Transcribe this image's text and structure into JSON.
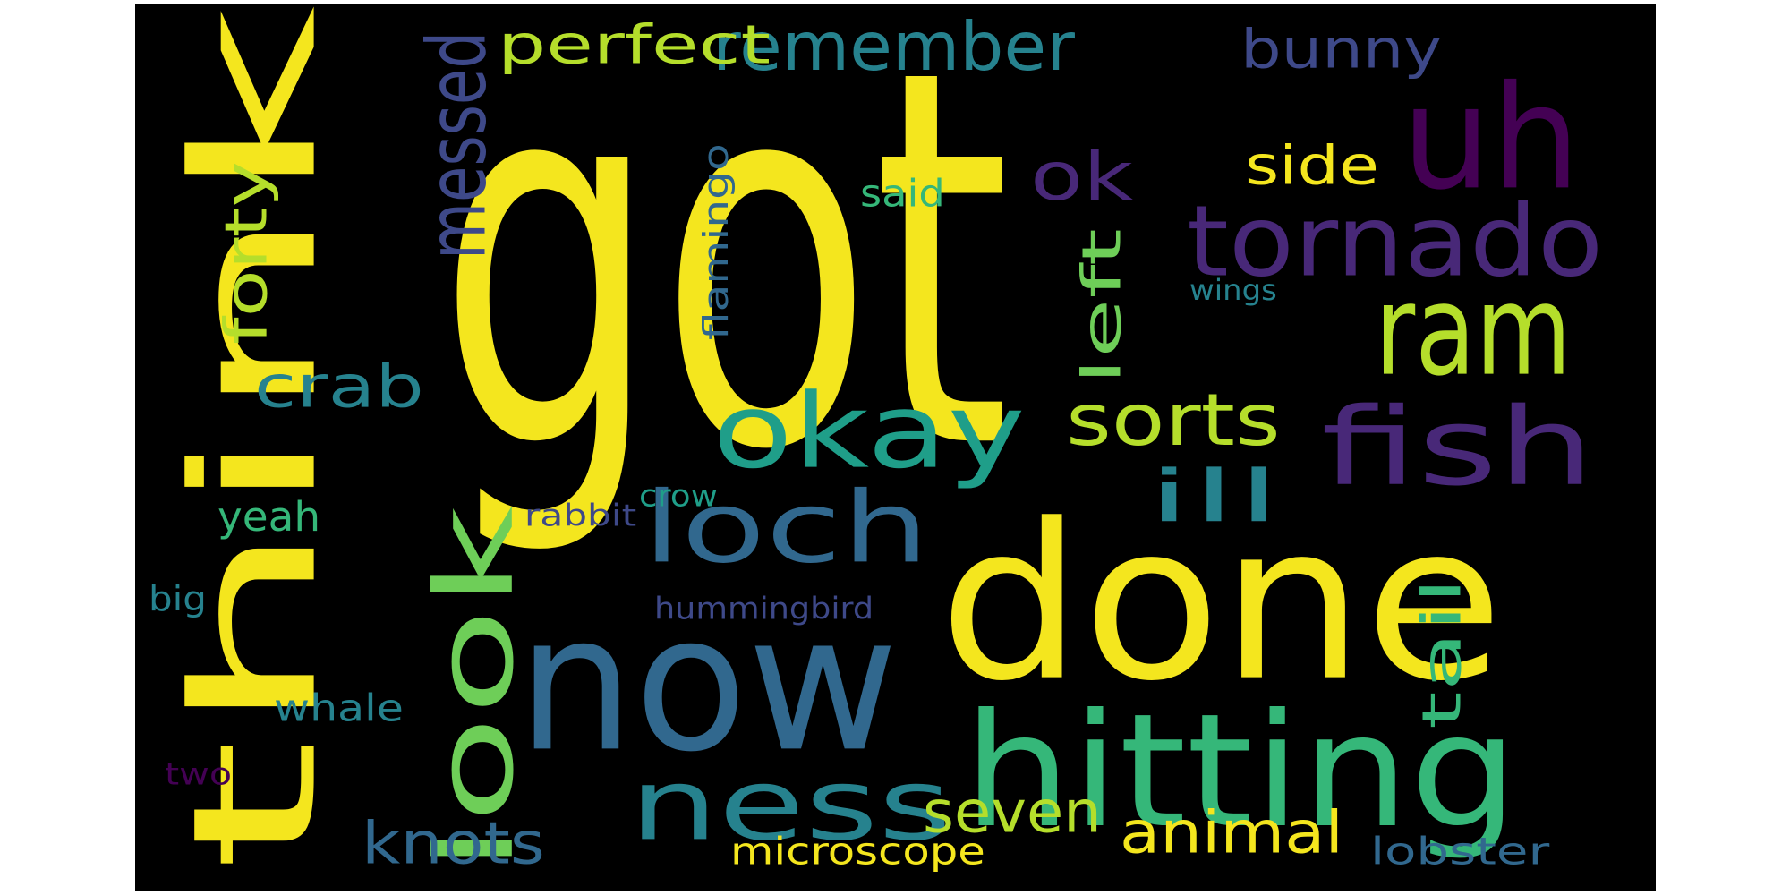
{
  "palette": {
    "yellow": "#f4e61e",
    "lime": "#b5de2b",
    "green": "#6ece58",
    "teal_green": "#35b779",
    "teal": "#1f9e89",
    "cyan_blue": "#26828e",
    "blue": "#31688e",
    "indigo": "#3e4989",
    "purple": "#482878",
    "dark_purple": "#440154"
  },
  "words": [
    {
      "key": "got",
      "text": "got",
      "color": "#f4e61e"
    },
    {
      "key": "think",
      "text": "think",
      "color": "#f4e61e"
    },
    {
      "key": "done",
      "text": "done",
      "color": "#f4e61e"
    },
    {
      "key": "now",
      "text": "now",
      "color": "#31688e"
    },
    {
      "key": "uh",
      "text": "uh",
      "color": "#440154"
    },
    {
      "key": "tornado",
      "text": "tornado",
      "color": "#482878"
    },
    {
      "key": "ram",
      "text": "ram",
      "color": "#b5de2b"
    },
    {
      "key": "fish",
      "text": "fish",
      "color": "#482878"
    },
    {
      "key": "hitting",
      "text": "hitting",
      "color": "#35b779"
    },
    {
      "key": "okay",
      "text": "okay",
      "color": "#1f9e89"
    },
    {
      "key": "loch",
      "text": "loch",
      "color": "#31688e"
    },
    {
      "key": "ness",
      "text": "ness",
      "color": "#26828e"
    },
    {
      "key": "look",
      "text": "look",
      "color": "#6ece58"
    },
    {
      "key": "remember",
      "text": "remember",
      "color": "#26828e"
    },
    {
      "key": "perfect",
      "text": "perfect",
      "color": "#b5de2b"
    },
    {
      "key": "bunny",
      "text": "bunny",
      "color": "#3e4989"
    },
    {
      "key": "messed",
      "text": "messed",
      "color": "#3e4989"
    },
    {
      "key": "ok",
      "text": "ok",
      "color": "#482878"
    },
    {
      "key": "side",
      "text": "side",
      "color": "#f4e61e"
    },
    {
      "key": "sorts",
      "text": "sorts",
      "color": "#b5de2b"
    },
    {
      "key": "ill",
      "text": "ill",
      "color": "#26828e"
    },
    {
      "key": "crab",
      "text": "crab",
      "color": "#26828e"
    },
    {
      "key": "forty",
      "text": "forty",
      "color": "#b5de2b"
    },
    {
      "key": "left",
      "text": "left",
      "color": "#6ece58"
    },
    {
      "key": "flamingo",
      "text": "flamingo",
      "color": "#31688e"
    },
    {
      "key": "said",
      "text": "said",
      "color": "#35b779"
    },
    {
      "key": "wings",
      "text": "wings",
      "color": "#26828e"
    },
    {
      "key": "tail",
      "text": "tail",
      "color": "#35b779"
    },
    {
      "key": "knots",
      "text": "knots",
      "color": "#31688e"
    },
    {
      "key": "seven",
      "text": "seven",
      "color": "#b5de2b"
    },
    {
      "key": "animal",
      "text": "animal",
      "color": "#f4e61e"
    },
    {
      "key": "microscope",
      "text": "microscope",
      "color": "#f4e61e"
    },
    {
      "key": "lobster",
      "text": "lobster",
      "color": "#31688e"
    },
    {
      "key": "yeah",
      "text": "yeah",
      "color": "#35b779"
    },
    {
      "key": "rabbit",
      "text": "rabbit",
      "color": "#3e4989"
    },
    {
      "key": "crow",
      "text": "crow",
      "color": "#1f9e89"
    },
    {
      "key": "big",
      "text": "big",
      "color": "#26828e"
    },
    {
      "key": "hummingbird",
      "text": "hummingbird",
      "color": "#3e4989"
    },
    {
      "key": "whale",
      "text": "whale",
      "color": "#26828e"
    },
    {
      "key": "two",
      "text": "two",
      "color": "#440154"
    }
  ]
}
